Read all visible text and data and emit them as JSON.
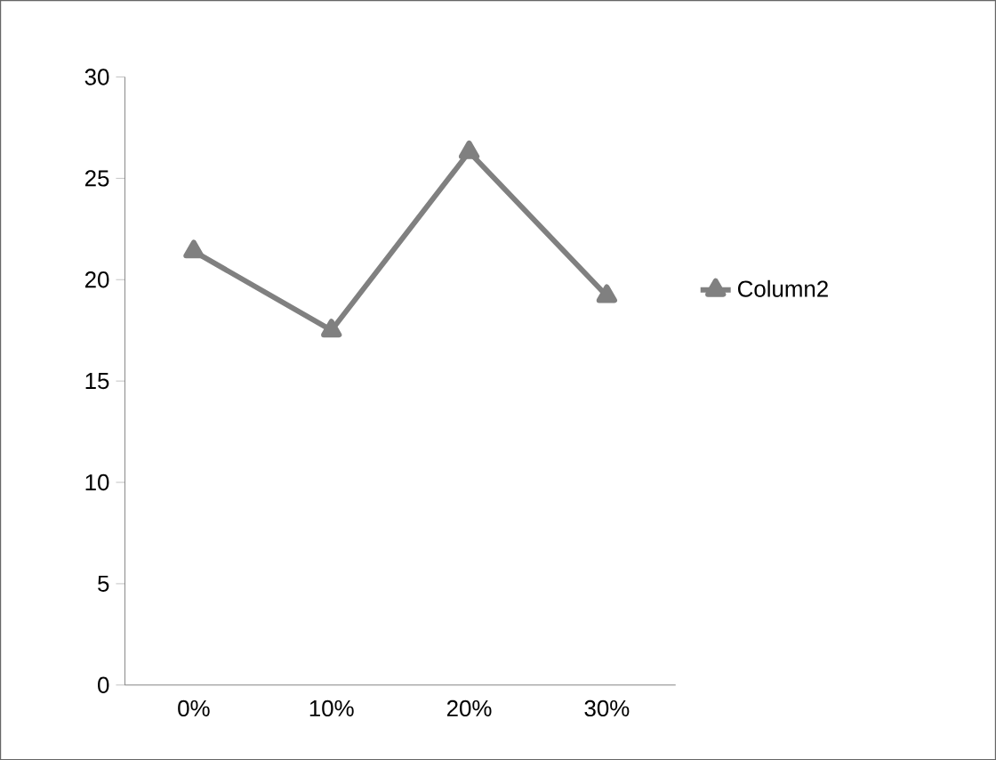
{
  "chart_data": {
    "type": "line",
    "categories": [
      "0%",
      "10%",
      "20%",
      "30%"
    ],
    "series": [
      {
        "name": "Column2",
        "color": "#808080",
        "values": [
          21.4,
          17.5,
          26.3,
          19.2
        ]
      }
    ],
    "ylim": [
      0,
      30
    ],
    "yticks": [
      0,
      5,
      10,
      15,
      20,
      25,
      30
    ],
    "grid": false,
    "legend": "right",
    "marker": "triangle",
    "line_style": "solid"
  }
}
